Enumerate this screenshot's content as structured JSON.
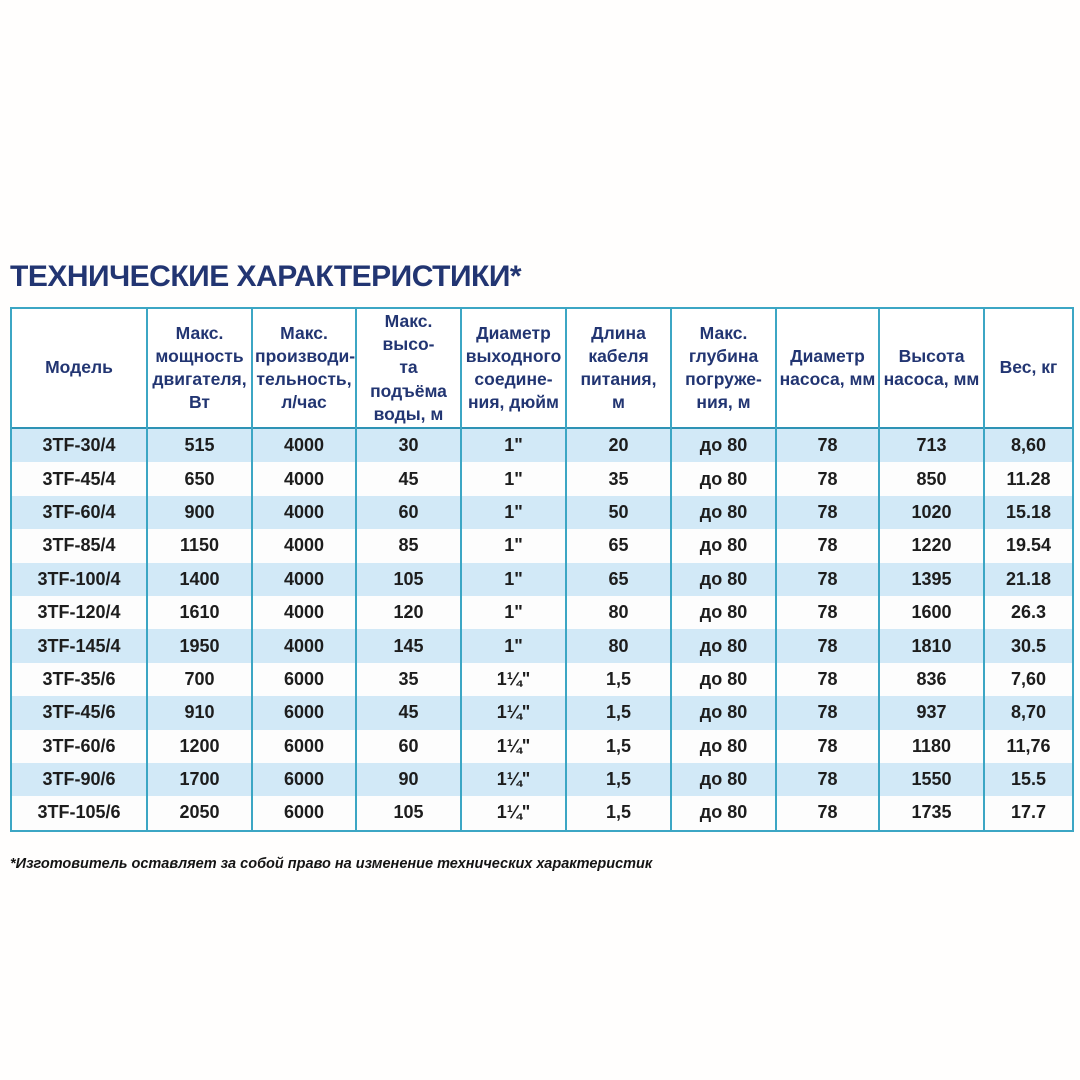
{
  "page": {
    "title": "ТЕХНИЧЕСКИЕ ХАРАКТЕРИСТИКИ*"
  },
  "table": {
    "columns": [
      "Модель",
      "Макс.\nмощность\nдвигателя,\nВт",
      "Макс.\nпроизводи-\nтельность,\nл/час",
      "Макс. высо-\nта подъёма\nводы, м",
      "Диаметр\nвыходного\nсоедине-\nния, дюйм",
      "Длина\nкабеля\nпитания,\nм",
      "Макс.\nглубина\nпогруже-\nния, м",
      "Диаметр\nнасоса, мм",
      "Высота\nнасоса, мм",
      "Вес, кг"
    ],
    "rows": [
      [
        "3TF-30/4",
        "515",
        "4000",
        "30",
        "1\"",
        "20",
        "до 80",
        "78",
        "713",
        "8,60"
      ],
      [
        "3TF-45/4",
        "650",
        "4000",
        "45",
        "1\"",
        "35",
        "до 80",
        "78",
        "850",
        "11.28"
      ],
      [
        "3TF-60/4",
        "900",
        "4000",
        "60",
        "1\"",
        "50",
        "до 80",
        "78",
        "1020",
        "15.18"
      ],
      [
        "3TF-85/4",
        "1150",
        "4000",
        "85",
        "1\"",
        "65",
        "до 80",
        "78",
        "1220",
        "19.54"
      ],
      [
        "3TF-100/4",
        "1400",
        "4000",
        "105",
        "1\"",
        "65",
        "до 80",
        "78",
        "1395",
        "21.18"
      ],
      [
        "3TF-120/4",
        "1610",
        "4000",
        "120",
        "1\"",
        "80",
        "до 80",
        "78",
        "1600",
        "26.3"
      ],
      [
        "3TF-145/4",
        "1950",
        "4000",
        "145",
        "1\"",
        "80",
        "до 80",
        "78",
        "1810",
        "30.5"
      ],
      [
        "3TF-35/6",
        "700",
        "6000",
        "35",
        "1¼\"",
        "1,5",
        "до 80",
        "78",
        "836",
        "7,60"
      ],
      [
        "3TF-45/6",
        "910",
        "6000",
        "45",
        "1¼\"",
        "1,5",
        "до 80",
        "78",
        "937",
        "8,70"
      ],
      [
        "3TF-60/6",
        "1200",
        "6000",
        "60",
        "1¼\"",
        "1,5",
        "до 80",
        "78",
        "1180",
        "11,76"
      ],
      [
        "3TF-90/6",
        "1700",
        "6000",
        "90",
        "1¼\"",
        "1,5",
        "до 80",
        "78",
        "1550",
        "15.5"
      ],
      [
        "3TF-105/6",
        "2050",
        "6000",
        "105",
        "1¼\"",
        "1,5",
        "до 80",
        "78",
        "1735",
        "17.7"
      ]
    ],
    "footnote": "*Изготовитель оставляет за собой право на изменение технических характеристик"
  },
  "colors": {
    "border_teal": "#3ca6c4",
    "stripe_blue": "#d2e9f7",
    "heading_navy": "#223572",
    "body_text": "#1d1d1d"
  }
}
